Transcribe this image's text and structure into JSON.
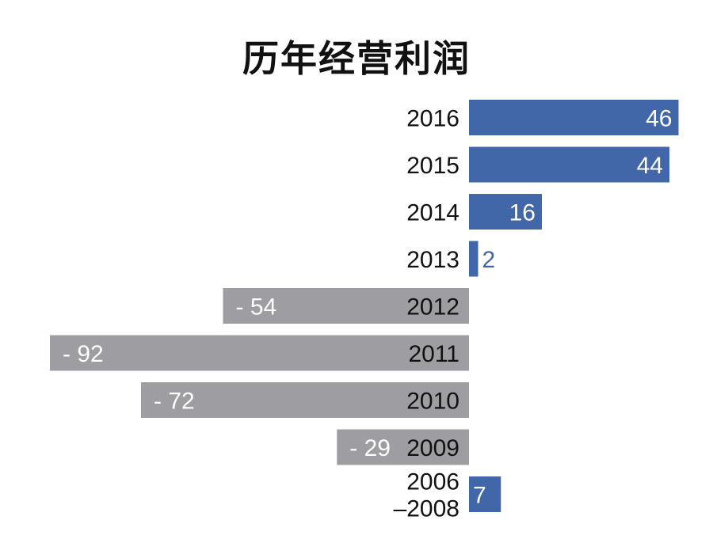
{
  "chart_data": {
    "type": "bar",
    "orientation": "horizontal",
    "title": "历年经营利润",
    "xlabel": "",
    "ylabel": "",
    "categories": [
      "2016",
      "2015",
      "2014",
      "2013",
      "2012",
      "2011",
      "2010",
      "2009",
      "2006\n–2008"
    ],
    "values": [
      46,
      44,
      16,
      2,
      -54,
      -92,
      -72,
      -29,
      7
    ],
    "value_labels": [
      "46",
      "44",
      "16",
      "2",
      "- 54",
      "- 92",
      "- 72",
      "- 29",
      "7"
    ],
    "xlim": [
      -92,
      46
    ],
    "grid": false,
    "legend": "none",
    "colors": {
      "positive": "#4167a9",
      "negative": "#9d9da2",
      "label_on_bar": "#ffffff",
      "category_text": "#111111"
    }
  }
}
